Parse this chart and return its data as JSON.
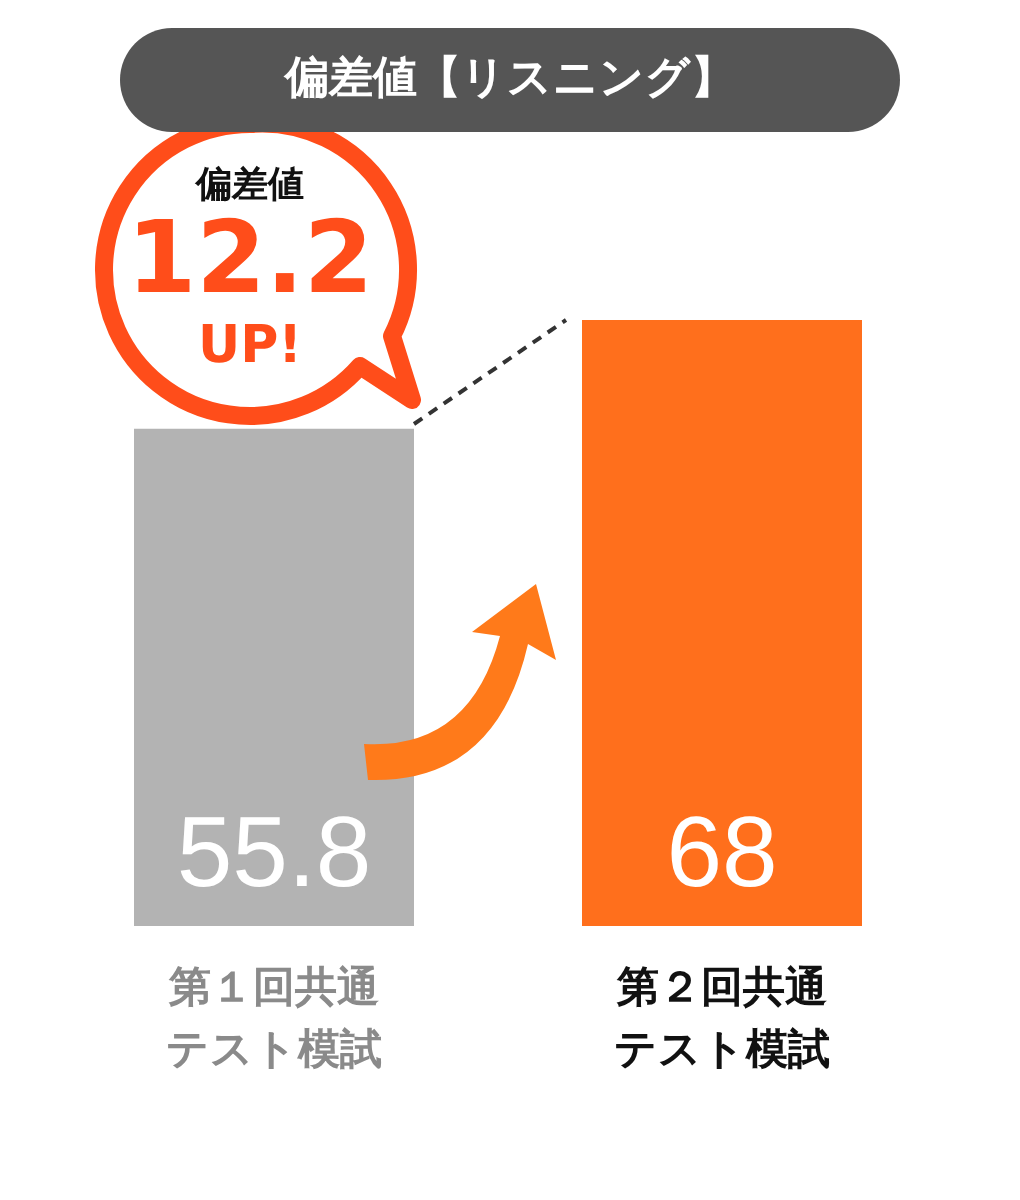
{
  "chart_data": {
    "type": "bar",
    "title": "偏差値【リスニング】",
    "categories": [
      "第１回共通テスト模試",
      "第２回共通テスト模試"
    ],
    "values": [
      55.8,
      68
    ],
    "colors": [
      "#b3b3b3",
      "#ff6f1c"
    ],
    "data_labels": true,
    "annotations": [
      "偏差値",
      "12.2",
      "UP!"
    ]
  }
}
